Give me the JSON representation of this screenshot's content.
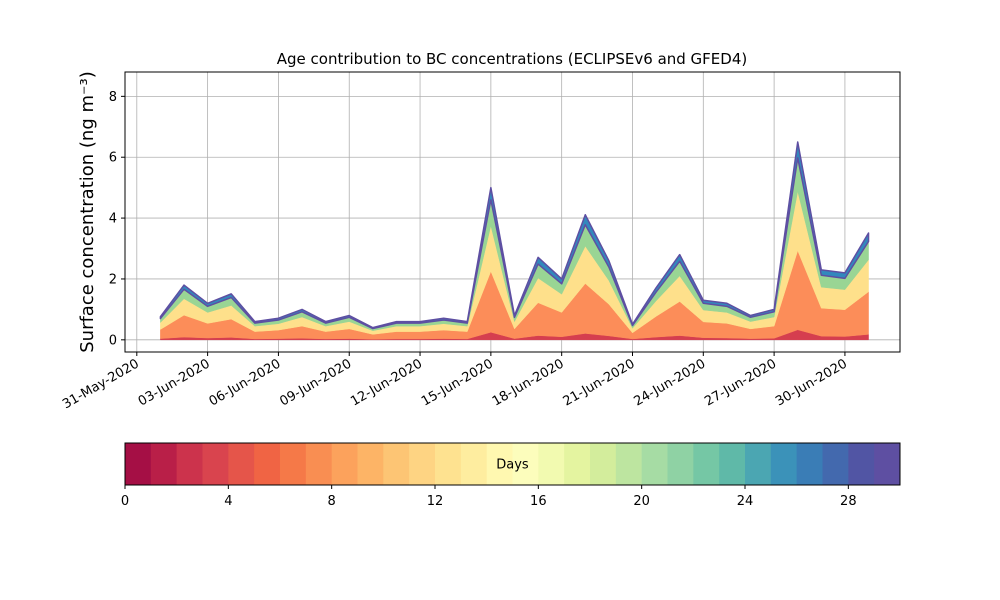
{
  "chart_data": {
    "type": "stackedarea",
    "title": "Age contribution to BC concentrations (ECLIPSEv6 and GFED4)",
    "y_label": "Surface concentration (ng m⁻³)",
    "x": [
      "2020-06-01",
      "2020-06-02",
      "2020-06-03",
      "2020-06-04",
      "2020-06-05",
      "2020-06-06",
      "2020-06-07",
      "2020-06-08",
      "2020-06-09",
      "2020-06-10",
      "2020-06-11",
      "2020-06-12",
      "2020-06-13",
      "2020-06-14",
      "2020-06-15",
      "2020-06-16",
      "2020-06-17",
      "2020-06-18",
      "2020-06-19",
      "2020-06-20",
      "2020-06-21",
      "2020-06-22",
      "2020-06-23",
      "2020-06-24",
      "2020-06-25",
      "2020-06-26",
      "2020-06-27",
      "2020-06-28",
      "2020-06-29",
      "2020-06-30",
      "2020-07-01"
    ],
    "series": [
      {
        "color": "#d53e4f",
        "values": [
          0.04,
          0.09,
          0.06,
          0.08,
          0.03,
          0.04,
          0.05,
          0.03,
          0.04,
          0.02,
          0.03,
          0.03,
          0.04,
          0.03,
          0.25,
          0.04,
          0.14,
          0.1,
          0.21,
          0.13,
          0.03,
          0.09,
          0.14,
          0.07,
          0.06,
          0.04,
          0.05,
          0.33,
          0.12,
          0.11,
          0.18
        ]
      },
      {
        "color": "#fc8d59",
        "values": [
          0.3,
          0.72,
          0.48,
          0.6,
          0.24,
          0.28,
          0.4,
          0.24,
          0.32,
          0.16,
          0.24,
          0.24,
          0.28,
          0.24,
          2.0,
          0.32,
          1.08,
          0.8,
          1.64,
          1.04,
          0.2,
          0.68,
          1.12,
          0.52,
          0.48,
          0.32,
          0.4,
          2.6,
          0.92,
          0.88,
          1.4
        ]
      },
      {
        "color": "#fee08b",
        "values": [
          0.23,
          0.54,
          0.36,
          0.45,
          0.18,
          0.21,
          0.3,
          0.18,
          0.24,
          0.12,
          0.18,
          0.18,
          0.21,
          0.18,
          1.5,
          0.24,
          0.81,
          0.6,
          1.23,
          0.78,
          0.15,
          0.51,
          0.84,
          0.39,
          0.36,
          0.24,
          0.3,
          1.95,
          0.69,
          0.66,
          1.05
        ]
      },
      {
        "color": "#99d594",
        "values": [
          0.13,
          0.31,
          0.2,
          0.26,
          0.1,
          0.12,
          0.17,
          0.1,
          0.14,
          0.07,
          0.1,
          0.1,
          0.12,
          0.1,
          0.85,
          0.14,
          0.46,
          0.34,
          0.7,
          0.44,
          0.09,
          0.29,
          0.48,
          0.22,
          0.2,
          0.14,
          0.17,
          1.1,
          0.39,
          0.37,
          0.6
        ]
      },
      {
        "color": "#3288bd",
        "values": [
          0.06,
          0.14,
          0.1,
          0.12,
          0.05,
          0.06,
          0.08,
          0.05,
          0.06,
          0.03,
          0.05,
          0.05,
          0.06,
          0.05,
          0.4,
          0.06,
          0.22,
          0.16,
          0.33,
          0.21,
          0.04,
          0.14,
          0.22,
          0.1,
          0.1,
          0.06,
          0.08,
          0.52,
          0.18,
          0.18,
          0.28
        ]
      }
    ],
    "xlim": [
      "2020-05-30T12:00",
      "2020-07-02T08:00"
    ],
    "xticks": [
      {
        "value": "2020-05-31",
        "label": "31-May-2020"
      },
      {
        "value": "2020-06-03",
        "label": "03-Jun-2020"
      },
      {
        "value": "2020-06-06",
        "label": "06-Jun-2020"
      },
      {
        "value": "2020-06-09",
        "label": "09-Jun-2020"
      },
      {
        "value": "2020-06-12",
        "label": "12-Jun-2020"
      },
      {
        "value": "2020-06-15",
        "label": "15-Jun-2020"
      },
      {
        "value": "2020-06-18",
        "label": "18-Jun-2020"
      },
      {
        "value": "2020-06-21",
        "label": "21-Jun-2020"
      },
      {
        "value": "2020-06-24",
        "label": "24-Jun-2020"
      },
      {
        "value": "2020-06-27",
        "label": "27-Jun-2020"
      },
      {
        "value": "2020-06-30",
        "label": "30-Jun-2020"
      }
    ],
    "ylim": [
      -0.4,
      8.8
    ],
    "yticks": [
      0,
      2,
      4,
      6,
      8
    ],
    "grid": true,
    "colorbar": {
      "label": "Days",
      "lim": [
        0,
        30
      ],
      "ticks": [
        0,
        4,
        8,
        12,
        16,
        20,
        24,
        28
      ],
      "colors": [
        "#a50f45",
        "#b91f48",
        "#cc334c",
        "#d9444e",
        "#e5554a",
        "#f06444",
        "#f57948",
        "#f98e52",
        "#fca25c",
        "#fdb466",
        "#fdc574",
        "#fed483",
        "#fee290",
        "#feed9f",
        "#fff8b0",
        "#fcfdbc",
        "#f2fab0",
        "#e4f4a0",
        "#d3ed9c",
        "#bde5a0",
        "#a6dca4",
        "#8fd2a4",
        "#75c7a5",
        "#5fb9a8",
        "#4ba6b2",
        "#3b92b9",
        "#3a7db6",
        "#4369ae",
        "#5155a4",
        "#5e4fa2"
      ]
    }
  }
}
